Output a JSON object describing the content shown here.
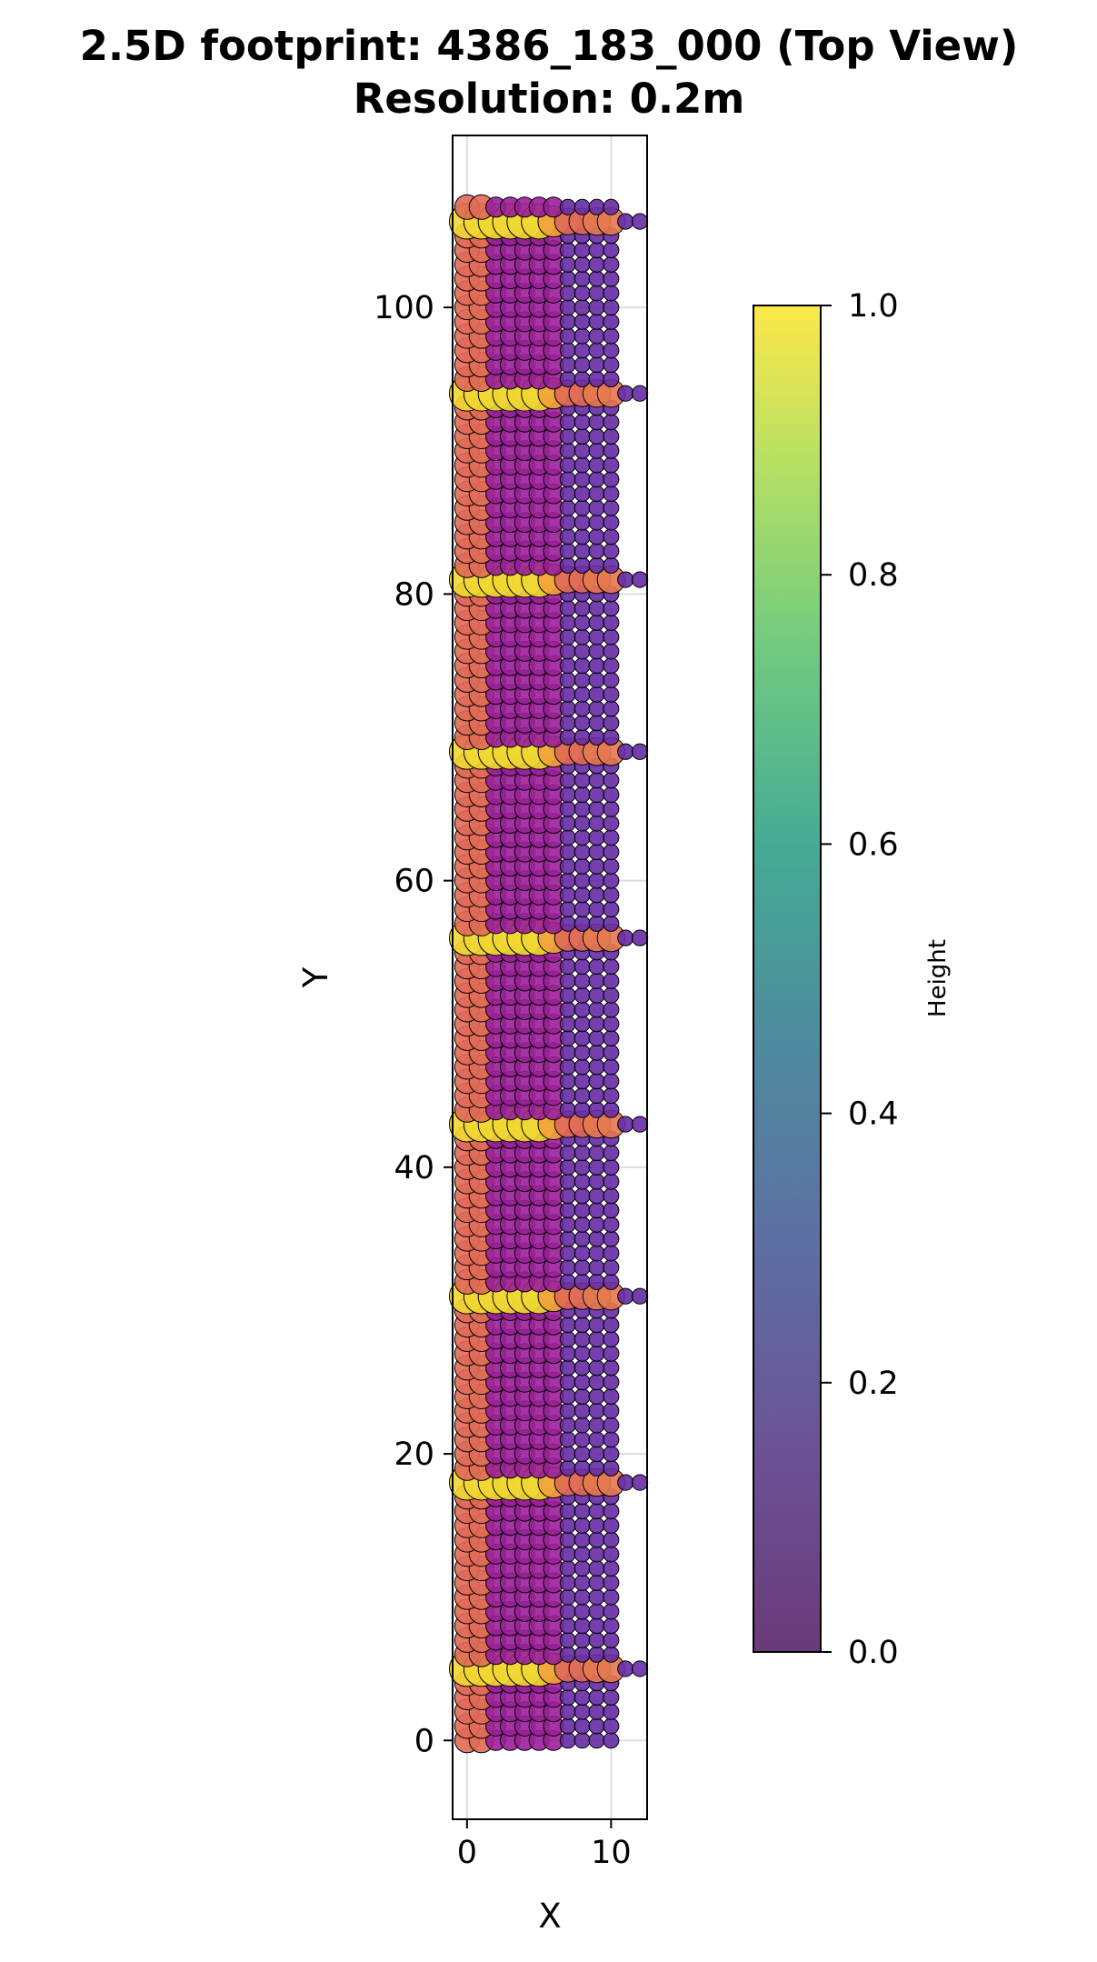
{
  "chart_data": {
    "type": "scatter",
    "title_line1": "2.5D footprint: 4386_183_000 (Top View)",
    "title_line2": "Resolution: 0.2m",
    "xlabel": "X",
    "ylabel": "Y",
    "xlim": [
      -1,
      12.5
    ],
    "ylim": [
      -5.5,
      112
    ],
    "x_ticks": [
      0,
      10
    ],
    "y_ticks": [
      0,
      20,
      40,
      60,
      80,
      100
    ],
    "grid": true,
    "colormap": "plasma",
    "colorbar": {
      "label": "Height",
      "colormap": "viridis",
      "range": [
        0.0,
        1.0
      ],
      "ticks": [
        "0.0",
        "0.2",
        "0.4",
        "0.6",
        "0.8",
        "1.0"
      ]
    },
    "colors": {
      "wall": "#e06a55",
      "roof_high": "#f0e030",
      "orange": "#f3a23a",
      "interior": "#9a1f98",
      "low": "#5a2ea8",
      "edge": "#000000"
    },
    "x_grid": [
      0,
      1,
      2,
      3,
      4,
      5,
      6,
      7,
      8,
      9,
      10
    ],
    "floor_rows_y": [
      5,
      18,
      31,
      43,
      56,
      69,
      81,
      94,
      106
    ],
    "floor_row_pattern": [
      {
        "x": 0,
        "h": 0.95
      },
      {
        "x": 1,
        "h": 0.95
      },
      {
        "x": 2,
        "h": 0.95
      },
      {
        "x": 3,
        "h": 0.95
      },
      {
        "x": 4,
        "h": 0.95
      },
      {
        "x": 5,
        "h": 0.95
      },
      {
        "x": 6,
        "h": 0.75
      },
      {
        "x": 7,
        "h": 0.55
      },
      {
        "x": 8,
        "h": 0.55
      },
      {
        "x": 9,
        "h": 0.6
      },
      {
        "x": 10,
        "h": 0.6
      },
      {
        "x": 11,
        "h": 0.05
      },
      {
        "x": 12,
        "h": 0.05
      }
    ],
    "column_heights": [
      {
        "x": 0,
        "h": 0.55
      },
      {
        "x": 1,
        "h": 0.55
      },
      {
        "x": 2,
        "h": 0.3
      },
      {
        "x": 3,
        "h": 0.3
      },
      {
        "x": 4,
        "h": 0.3
      },
      {
        "x": 5,
        "h": 0.3
      },
      {
        "x": 6,
        "h": 0.3
      },
      {
        "x": 7,
        "h": 0.05
      },
      {
        "x": 8,
        "h": 0.05
      },
      {
        "x": 9,
        "h": 0.05
      },
      {
        "x": 10,
        "h": 0.05
      }
    ],
    "y_step": 1.0,
    "y_range": [
      0,
      107
    ]
  }
}
